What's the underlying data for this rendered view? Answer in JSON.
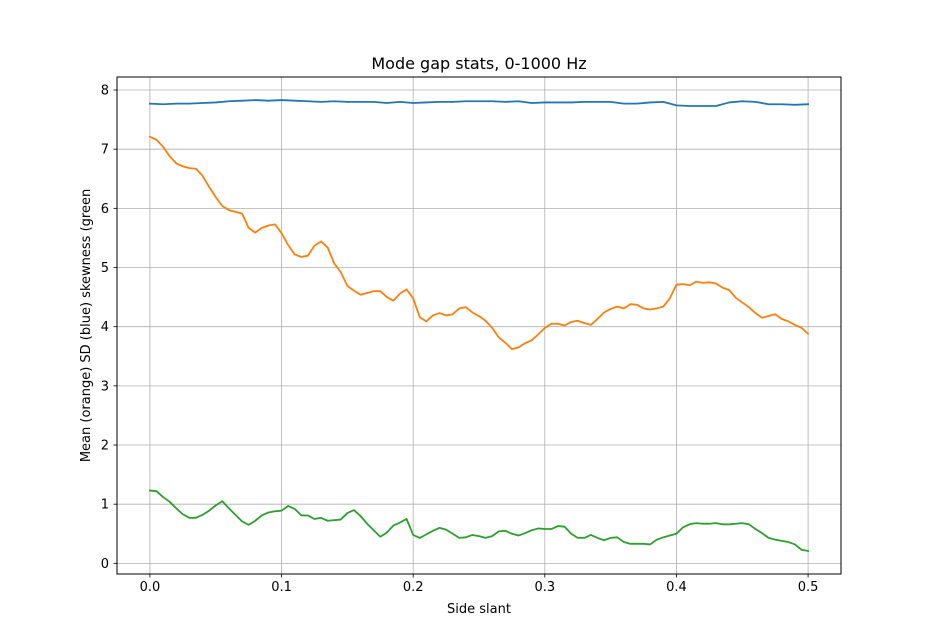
{
  "chart_data": {
    "type": "line",
    "title": "Mode gap stats, 0-1000 Hz",
    "xlabel": "Side slant",
    "ylabel": "Mean (orange) SD (blue) skewness (green",
    "xlim": [
      -0.025,
      0.525
    ],
    "ylim": [
      -0.18,
      8.22
    ],
    "xticks": [
      "0.0",
      "0.1",
      "0.2",
      "0.3",
      "0.4",
      "0.5"
    ],
    "yticks": [
      "0",
      "1",
      "2",
      "3",
      "4",
      "5",
      "6",
      "7",
      "8"
    ],
    "grid": true,
    "legend": "none",
    "series": [
      {
        "color": "#1f77b4",
        "x": [
          0.0,
          0.01,
          0.02,
          0.03,
          0.04,
          0.05,
          0.06,
          0.07,
          0.08,
          0.09,
          0.1,
          0.11,
          0.12,
          0.13,
          0.14,
          0.15,
          0.16,
          0.17,
          0.18,
          0.19,
          0.2,
          0.21,
          0.22,
          0.23,
          0.24,
          0.25,
          0.26,
          0.27,
          0.28,
          0.29,
          0.3,
          0.31,
          0.32,
          0.33,
          0.34,
          0.35,
          0.36,
          0.37,
          0.38,
          0.39,
          0.4,
          0.41,
          0.42,
          0.43,
          0.44,
          0.45,
          0.46,
          0.47,
          0.48,
          0.49,
          0.5
        ],
        "y": [
          7.77,
          7.76,
          7.77,
          7.77,
          7.78,
          7.79,
          7.81,
          7.82,
          7.83,
          7.82,
          7.83,
          7.82,
          7.81,
          7.8,
          7.81,
          7.8,
          7.8,
          7.8,
          7.78,
          7.8,
          7.78,
          7.79,
          7.8,
          7.8,
          7.81,
          7.81,
          7.81,
          7.8,
          7.81,
          7.78,
          7.79,
          7.79,
          7.79,
          7.8,
          7.8,
          7.8,
          7.77,
          7.77,
          7.79,
          7.8,
          7.74,
          7.73,
          7.73,
          7.73,
          7.79,
          7.81,
          7.8,
          7.76,
          7.76,
          7.75,
          7.76
        ]
      },
      {
        "color": "#ff7f0e",
        "x": [
          0.0,
          0.005,
          0.01,
          0.015,
          0.02,
          0.025,
          0.03,
          0.035,
          0.04,
          0.045,
          0.05,
          0.055,
          0.06,
          0.065,
          0.07,
          0.075,
          0.08,
          0.085,
          0.09,
          0.095,
          0.1,
          0.105,
          0.11,
          0.115,
          0.12,
          0.125,
          0.13,
          0.135,
          0.14,
          0.145,
          0.15,
          0.155,
          0.16,
          0.165,
          0.17,
          0.175,
          0.18,
          0.185,
          0.19,
          0.195,
          0.2,
          0.205,
          0.21,
          0.215,
          0.22,
          0.225,
          0.23,
          0.235,
          0.24,
          0.245,
          0.25,
          0.255,
          0.26,
          0.265,
          0.27,
          0.275,
          0.28,
          0.285,
          0.29,
          0.295,
          0.3,
          0.305,
          0.31,
          0.315,
          0.32,
          0.325,
          0.33,
          0.335,
          0.34,
          0.345,
          0.35,
          0.355,
          0.36,
          0.365,
          0.37,
          0.375,
          0.38,
          0.385,
          0.39,
          0.395,
          0.4,
          0.405,
          0.41,
          0.415,
          0.42,
          0.425,
          0.43,
          0.435,
          0.44,
          0.445,
          0.45,
          0.455,
          0.46,
          0.465,
          0.47,
          0.475,
          0.48,
          0.485,
          0.49,
          0.495,
          0.5
        ],
        "y": [
          7.21,
          7.16,
          7.04,
          6.88,
          6.76,
          6.71,
          6.68,
          6.67,
          6.55,
          6.36,
          6.19,
          6.04,
          5.97,
          5.94,
          5.91,
          5.67,
          5.59,
          5.67,
          5.71,
          5.73,
          5.58,
          5.38,
          5.22,
          5.18,
          5.2,
          5.37,
          5.44,
          5.34,
          5.07,
          4.92,
          4.69,
          4.61,
          4.54,
          4.57,
          4.6,
          4.6,
          4.5,
          4.44,
          4.56,
          4.63,
          4.48,
          4.16,
          4.09,
          4.19,
          4.23,
          4.19,
          4.21,
          4.31,
          4.33,
          4.24,
          4.18,
          4.1,
          3.98,
          3.82,
          3.73,
          3.62,
          3.65,
          3.72,
          3.77,
          3.87,
          3.98,
          4.05,
          4.05,
          4.02,
          4.08,
          4.1,
          4.06,
          4.03,
          4.13,
          4.24,
          4.3,
          4.34,
          4.31,
          4.38,
          4.37,
          4.31,
          4.29,
          4.31,
          4.34,
          4.48,
          4.71,
          4.72,
          4.7,
          4.76,
          4.74,
          4.75,
          4.73,
          4.66,
          4.62,
          4.49,
          4.41,
          4.33,
          4.23,
          4.15,
          4.18,
          4.21,
          4.13,
          4.09,
          4.03,
          3.98,
          3.88
        ]
      },
      {
        "color": "#2ca02c",
        "x": [
          0.0,
          0.005,
          0.01,
          0.015,
          0.02,
          0.025,
          0.03,
          0.035,
          0.04,
          0.045,
          0.05,
          0.055,
          0.06,
          0.065,
          0.07,
          0.075,
          0.08,
          0.085,
          0.09,
          0.095,
          0.1,
          0.105,
          0.11,
          0.115,
          0.12,
          0.125,
          0.13,
          0.135,
          0.14,
          0.145,
          0.15,
          0.155,
          0.16,
          0.165,
          0.17,
          0.175,
          0.18,
          0.185,
          0.19,
          0.195,
          0.2,
          0.205,
          0.21,
          0.215,
          0.22,
          0.225,
          0.23,
          0.235,
          0.24,
          0.245,
          0.25,
          0.255,
          0.26,
          0.265,
          0.27,
          0.275,
          0.28,
          0.285,
          0.29,
          0.295,
          0.3,
          0.305,
          0.31,
          0.315,
          0.32,
          0.325,
          0.33,
          0.335,
          0.34,
          0.345,
          0.35,
          0.355,
          0.36,
          0.365,
          0.37,
          0.375,
          0.38,
          0.385,
          0.39,
          0.395,
          0.4,
          0.405,
          0.41,
          0.415,
          0.42,
          0.425,
          0.43,
          0.435,
          0.44,
          0.445,
          0.45,
          0.455,
          0.46,
          0.465,
          0.47,
          0.475,
          0.48,
          0.485,
          0.49,
          0.495,
          0.5
        ],
        "y": [
          1.23,
          1.22,
          1.12,
          1.04,
          0.93,
          0.83,
          0.77,
          0.77,
          0.82,
          0.89,
          0.98,
          1.05,
          0.93,
          0.82,
          0.71,
          0.65,
          0.72,
          0.81,
          0.86,
          0.88,
          0.89,
          0.97,
          0.92,
          0.81,
          0.81,
          0.75,
          0.77,
          0.72,
          0.73,
          0.74,
          0.85,
          0.9,
          0.8,
          0.67,
          0.56,
          0.45,
          0.52,
          0.64,
          0.69,
          0.75,
          0.48,
          0.43,
          0.49,
          0.55,
          0.6,
          0.57,
          0.5,
          0.43,
          0.44,
          0.48,
          0.46,
          0.43,
          0.46,
          0.54,
          0.55,
          0.5,
          0.47,
          0.51,
          0.56,
          0.59,
          0.58,
          0.58,
          0.63,
          0.62,
          0.5,
          0.43,
          0.43,
          0.48,
          0.43,
          0.39,
          0.43,
          0.44,
          0.36,
          0.33,
          0.33,
          0.33,
          0.32,
          0.4,
          0.44,
          0.47,
          0.5,
          0.61,
          0.66,
          0.68,
          0.67,
          0.67,
          0.68,
          0.66,
          0.66,
          0.67,
          0.68,
          0.66,
          0.58,
          0.51,
          0.43,
          0.4,
          0.38,
          0.36,
          0.32,
          0.23,
          0.21
        ]
      }
    ]
  }
}
